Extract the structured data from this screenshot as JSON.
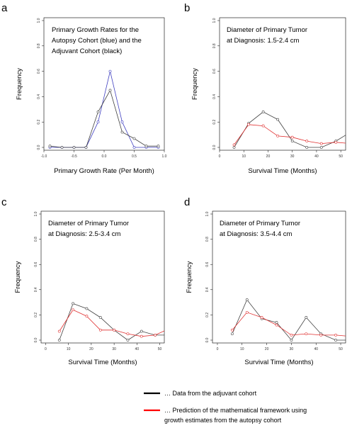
{
  "legend": {
    "entries": [
      {
        "color": "#000000",
        "lines": [
          "… Data from the adjuvant cohort"
        ]
      },
      {
        "color": "#ff0000",
        "lines": [
          "… Prediction of the mathematical framework using",
          "growth estimates from the autopsy cohort"
        ]
      }
    ]
  },
  "chart_data": [
    {
      "type": "line",
      "panel_letter": "a",
      "annotation": [
        "Primary Growth Rates for the",
        "Autopsy Cohort (blue) and the",
        "Adjuvant Cohort (black)"
      ],
      "xlabel": "Primary Growth Rate (Per Month)",
      "ylabel": "Frequency",
      "xlim": [
        -1.0,
        1.0
      ],
      "ylim": [
        0,
        1.0
      ],
      "xticks": [
        "-1.0",
        "-0.5",
        "0.0",
        "0.5",
        "1.0"
      ],
      "xtick_values": [
        -1.0,
        -0.5,
        0.0,
        0.5,
        1.0
      ],
      "yticks": [
        "0.0",
        "0.2",
        "0.4",
        "0.6",
        "0.8",
        "1.0"
      ],
      "ytick_values": [
        0.0,
        0.2,
        0.4,
        0.6,
        0.8,
        1.0
      ],
      "series": [
        {
          "color": "#4040c0",
          "x": [
            -0.9,
            -0.7,
            -0.5,
            -0.3,
            -0.1,
            0.1,
            0.3,
            0.5,
            0.7,
            0.9
          ],
          "y": [
            0.0,
            0.0,
            0.0,
            0.0,
            0.2,
            0.6,
            0.2,
            0.0,
            0.0,
            0.0
          ]
        },
        {
          "color": "#404040",
          "x": [
            -0.9,
            -0.7,
            -0.5,
            -0.3,
            -0.1,
            0.1,
            0.3,
            0.5,
            0.7,
            0.9
          ],
          "y": [
            0.01,
            0.0,
            0.0,
            0.0,
            0.28,
            0.45,
            0.12,
            0.07,
            0.01,
            0.01
          ]
        }
      ]
    },
    {
      "type": "line",
      "panel_letter": "b",
      "annotation": [
        "Diameter of Primary Tumor",
        "at Diagnosis: 1.5-2.4 cm"
      ],
      "xlabel": "Survival Time (Months)",
      "ylabel": "Frequency",
      "xlim": [
        0,
        52
      ],
      "ylim": [
        0,
        1.0
      ],
      "xticks": [
        "0",
        "10",
        "20",
        "30",
        "40",
        "50"
      ],
      "xtick_values": [
        0,
        10,
        20,
        30,
        40,
        50
      ],
      "yticks": [
        "0.0",
        "0.2",
        "0.4",
        "0.6",
        "0.8",
        "1.0"
      ],
      "ytick_values": [
        0.0,
        0.2,
        0.4,
        0.6,
        0.8,
        1.0
      ],
      "series": [
        {
          "color": "#404040",
          "x": [
            6,
            12,
            18,
            24,
            30,
            36,
            42,
            48,
            54
          ],
          "y": [
            0.0,
            0.19,
            0.28,
            0.22,
            0.05,
            0.0,
            0.0,
            0.05,
            0.12
          ]
        },
        {
          "color": "#e03030",
          "x": [
            6,
            12,
            18,
            24,
            30,
            36,
            42,
            48,
            54
          ],
          "y": [
            0.02,
            0.18,
            0.17,
            0.09,
            0.08,
            0.05,
            0.03,
            0.04,
            0.03
          ]
        }
      ]
    },
    {
      "type": "line",
      "panel_letter": "c",
      "annotation": [
        "Diameter of Primary Tumor",
        "at Diagnosis: 2.5-3.4 cm"
      ],
      "xlabel": "Survival Time (Months)",
      "ylabel": "Frequency",
      "xlim": [
        -2,
        52
      ],
      "ylim": [
        0,
        1.0
      ],
      "xticks": [
        "0",
        "10",
        "20",
        "30",
        "40",
        "50"
      ],
      "xtick_values": [
        0,
        10,
        20,
        30,
        40,
        50
      ],
      "yticks": [
        "0.0",
        "0.2",
        "0.4",
        "0.6",
        "0.8",
        "1.0"
      ],
      "ytick_values": [
        0.0,
        0.2,
        0.4,
        0.6,
        0.8,
        1.0
      ],
      "series": [
        {
          "color": "#404040",
          "x": [
            6,
            12,
            18,
            24,
            30,
            36,
            42,
            48,
            54
          ],
          "y": [
            0.0,
            0.29,
            0.25,
            0.18,
            0.08,
            0.0,
            0.07,
            0.04,
            0.04
          ]
        },
        {
          "color": "#e03030",
          "x": [
            6,
            12,
            18,
            24,
            30,
            36,
            42,
            48,
            54
          ],
          "y": [
            0.07,
            0.24,
            0.19,
            0.08,
            0.08,
            0.05,
            0.03,
            0.04,
            0.09
          ]
        }
      ]
    },
    {
      "type": "line",
      "panel_letter": "d",
      "annotation": [
        "Diameter of Primary Tumor",
        "at Diagnosis: 3.5-4.4 cm"
      ],
      "xlabel": "Survival Time (Months)",
      "ylabel": "Frequency",
      "xlim": [
        -2,
        52
      ],
      "ylim": [
        0,
        1.0
      ],
      "xticks": [
        "0",
        "10",
        "20",
        "30",
        "40",
        "50"
      ],
      "xtick_values": [
        0,
        10,
        20,
        30,
        40,
        50
      ],
      "yticks": [
        "0.0",
        "0.2",
        "0.4",
        "0.6",
        "0.8",
        "1.0"
      ],
      "ytick_values": [
        0.0,
        0.2,
        0.4,
        0.6,
        0.8,
        1.0
      ],
      "series": [
        {
          "color": "#404040",
          "x": [
            6,
            12,
            18,
            24,
            30,
            36,
            42,
            48,
            54
          ],
          "y": [
            0.05,
            0.32,
            0.17,
            0.14,
            0.0,
            0.18,
            0.05,
            0.0,
            0.0
          ]
        },
        {
          "color": "#e03030",
          "x": [
            6,
            12,
            18,
            24,
            30,
            36,
            42,
            48,
            54
          ],
          "y": [
            0.08,
            0.22,
            0.18,
            0.12,
            0.04,
            0.05,
            0.04,
            0.04,
            0.03
          ]
        }
      ]
    }
  ]
}
